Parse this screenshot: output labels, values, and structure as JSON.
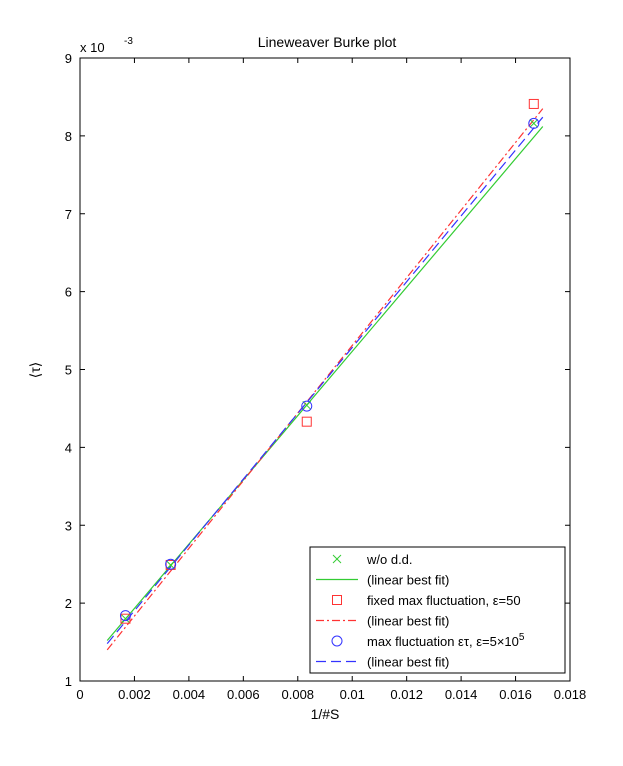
{
  "chart_data": {
    "type": "scatter",
    "title": "Lineweaver Burke plot",
    "xlabel": "1/#S",
    "ylabel": "⟨τ⟩",
    "y_multiplier": "x 10",
    "y_multiplier_exp": "-3",
    "xlim": [
      0,
      0.018
    ],
    "ylim": [
      1,
      9
    ],
    "xticks": [
      0,
      0.002,
      0.004,
      0.006,
      0.008,
      0.01,
      0.012,
      0.014,
      0.016,
      0.018
    ],
    "xtick_labels": [
      "0",
      "0.002",
      "0.004",
      "0.006",
      "0.008",
      "0.01",
      "0.012",
      "0.014",
      "0.016",
      "0.018"
    ],
    "yticks": [
      1,
      2,
      3,
      4,
      5,
      6,
      7,
      8,
      9
    ],
    "ytick_labels": [
      "1",
      "2",
      "3",
      "4",
      "5",
      "6",
      "7",
      "8",
      "9"
    ],
    "grid": false,
    "legend_position": "bottom-right",
    "series": [
      {
        "name": "w/o d.d.",
        "marker": "x",
        "color": "#33cc33",
        "x": [
          0.00167,
          0.00333,
          0.00833,
          0.01667
        ],
        "y": [
          1.8,
          2.49,
          4.54,
          8.16
        ]
      },
      {
        "name": "(linear best fit)",
        "line": "solid",
        "color": "#33cc33",
        "x": [
          0.001,
          0.017
        ],
        "y": [
          1.52,
          8.12
        ]
      },
      {
        "name": "fixed max fluctuation, ε=50",
        "marker": "square",
        "color": "#ff3333",
        "x": [
          0.00167,
          0.00333,
          0.00833,
          0.01667
        ],
        "y": [
          1.8,
          2.49,
          4.33,
          8.41
        ]
      },
      {
        "name": "(linear best fit)",
        "line": "dashdot",
        "color": "#ff3333",
        "x": [
          0.001,
          0.017
        ],
        "y": [
          1.4,
          8.35
        ]
      },
      {
        "name": "max fluctuation ετ, ε=5×10",
        "name_sup": "5",
        "marker": "circle",
        "color": "#3333ff",
        "x": [
          0.00167,
          0.00333,
          0.00833,
          0.01667
        ],
        "y": [
          1.84,
          2.5,
          4.53,
          8.16
        ]
      },
      {
        "name": "(linear best fit)",
        "line": "dashed",
        "color": "#3333ff",
        "x": [
          0.001,
          0.017
        ],
        "y": [
          1.48,
          8.24
        ]
      }
    ]
  }
}
